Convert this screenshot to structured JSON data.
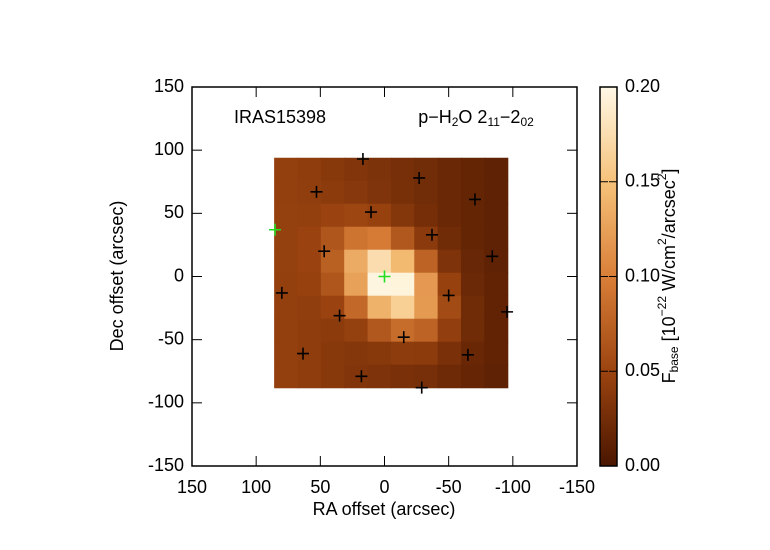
{
  "chart_data": {
    "type": "heatmap",
    "x_label": "RA offset (arcsec)",
    "y_label": "Dec offset (arcsec)",
    "source": "IRAS15398",
    "line_parts": [
      "p−H",
      "2",
      "O 2",
      "11",
      "−2",
      "02"
    ],
    "colorbar_label_parts": [
      "F",
      "base",
      " [10",
      "−22",
      " W/cm",
      "2",
      "/arcsec",
      "2",
      "]"
    ],
    "xlim": [
      150,
      -150
    ],
    "ylim": [
      -150,
      150
    ],
    "xticks": [
      150,
      100,
      50,
      0,
      -50,
      -100,
      -150
    ],
    "yticks": [
      -150,
      -100,
      -50,
      0,
      50,
      100,
      150
    ],
    "image_x": [
      86,
      -96
    ],
    "image_y": [
      94,
      -88
    ],
    "z": [
      [
        0.045,
        0.042,
        0.038,
        0.034,
        0.031,
        0.027,
        0.024,
        0.02,
        0.016,
        0.013
      ],
      [
        0.045,
        0.043,
        0.04,
        0.037,
        0.033,
        0.028,
        0.024,
        0.02,
        0.016,
        0.013
      ],
      [
        0.046,
        0.045,
        0.049,
        0.052,
        0.047,
        0.036,
        0.026,
        0.02,
        0.016,
        0.013
      ],
      [
        0.046,
        0.049,
        0.065,
        0.091,
        0.097,
        0.067,
        0.039,
        0.023,
        0.016,
        0.013
      ],
      [
        0.046,
        0.049,
        0.074,
        0.133,
        0.174,
        0.143,
        0.076,
        0.032,
        0.018,
        0.013
      ],
      [
        0.045,
        0.047,
        0.065,
        0.125,
        0.197,
        0.195,
        0.119,
        0.047,
        0.021,
        0.014
      ],
      [
        0.045,
        0.043,
        0.049,
        0.081,
        0.138,
        0.163,
        0.12,
        0.056,
        0.023,
        0.014
      ],
      [
        0.045,
        0.042,
        0.04,
        0.046,
        0.067,
        0.085,
        0.076,
        0.044,
        0.023,
        0.014
      ],
      [
        0.045,
        0.042,
        0.038,
        0.036,
        0.038,
        0.041,
        0.04,
        0.029,
        0.019,
        0.014
      ],
      [
        0.045,
        0.042,
        0.038,
        0.034,
        0.032,
        0.029,
        0.027,
        0.022,
        0.017,
        0.013
      ]
    ],
    "colormap": [
      "#4a1600",
      "#9c4410",
      "#d97f38",
      "#f6c27a",
      "#fff8e6"
    ],
    "zlim": [
      0,
      0.2
    ],
    "zticks": [
      {
        "value": 0,
        "label": "0.00"
      },
      {
        "value": 0.05,
        "label": "0.05"
      },
      {
        "value": 0.1,
        "label": "0.10"
      },
      {
        "value": 0.15,
        "label": "0.15"
      },
      {
        "value": 0.2,
        "label": "0.20"
      }
    ],
    "markers": {
      "color": "#000000",
      "x": [
        16.8,
        53,
        -27,
        -70.5,
        10.5,
        -37,
        47,
        -84,
        80,
        -50,
        -95.5,
        35,
        -15,
        63.5,
        -65,
        18,
        -29
      ],
      "y": [
        93,
        67,
        78,
        61,
        51,
        33,
        20,
        16,
        -13,
        -15,
        -28,
        -31,
        -48,
        -61,
        -62,
        -79,
        -88
      ]
    },
    "center_markers": {
      "color": "#22dd22",
      "x": [
        85.3,
        0
      ],
      "y": [
        37,
        0
      ]
    }
  }
}
